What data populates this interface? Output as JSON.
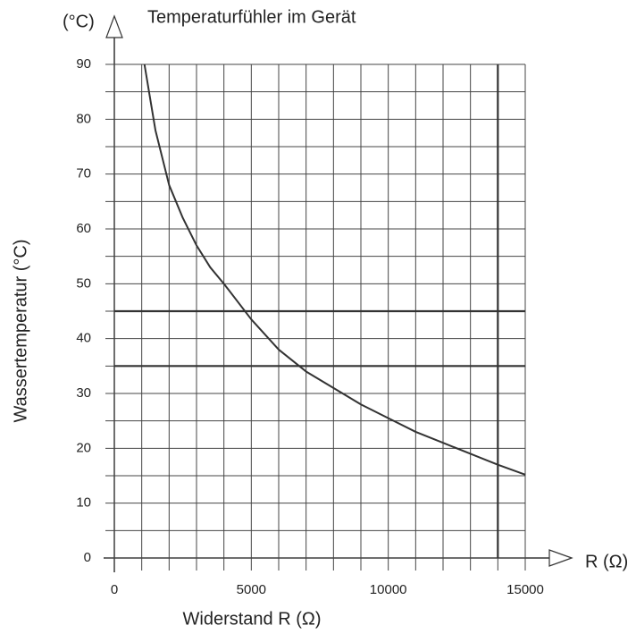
{
  "chart_data": {
    "type": "line",
    "title": "Temperaturfühler im Gerät",
    "y_unit_label": "(°C)",
    "x_unit_label": "R (Ω)",
    "ylabel": "Wassertemperatur (°C)",
    "xlabel": "Widerstand R (Ω)",
    "x": [
      1100,
      1500,
      2000,
      2500,
      3000,
      3500,
      4000,
      5000,
      6000,
      7000,
      8000,
      9000,
      10000,
      11000,
      12000,
      13000,
      14000,
      15000
    ],
    "series": [
      {
        "name": "Temperaturfühler",
        "color": "#333333",
        "values": [
          90,
          78,
          68,
          62,
          57,
          53,
          50,
          43.5,
          38,
          34,
          31,
          28,
          25.5,
          23,
          21,
          19,
          17,
          15.2
        ]
      }
    ],
    "xlim": [
      0,
      15000
    ],
    "ylim": [
      0,
      90
    ],
    "xticks": [
      0,
      5000,
      10000,
      15000
    ],
    "yticks": [
      0,
      10,
      20,
      30,
      40,
      50,
      60,
      70,
      80,
      90
    ],
    "xgrid": [
      0,
      1000,
      2000,
      3000,
      4000,
      5000,
      6000,
      7000,
      8000,
      9000,
      10000,
      11000,
      12000,
      13000,
      14000,
      15000
    ],
    "ygrid": [
      0,
      5,
      10,
      15,
      20,
      25,
      30,
      35,
      40,
      45,
      50,
      55,
      60,
      65,
      70,
      75,
      80,
      85,
      90
    ],
    "hlines": [
      35,
      45
    ],
    "vlines": [
      14000
    ],
    "grid": true
  }
}
